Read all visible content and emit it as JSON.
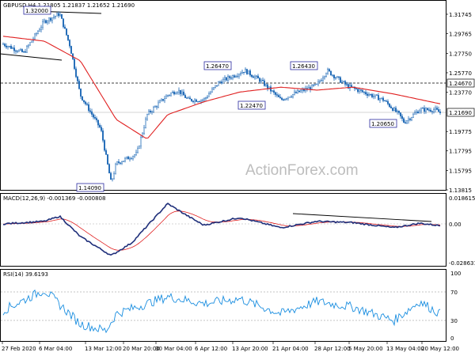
{
  "header": {
    "main": "GBPUSD,H4  1.21805 1.21837 1.21652 1.21690",
    "macd": "MACD(12,26,9) -0.001369 -0.000808",
    "rsi": "RSI(14) 39.6193"
  },
  "watermark": "ActionForex.com",
  "colors": {
    "candles": "#1a66b5",
    "ma": "#e02020",
    "macd_line": "#1f2f7a",
    "macd_signal": "#e02020",
    "rsi_line": "#1a8ee0",
    "grid": "#d8d8d8",
    "label_border": "#2a2aa0"
  },
  "main_axis": {
    "ticks": [
      "1.31745",
      "1.29765",
      "1.27750",
      "1.25770",
      "1.23770",
      "1.21690",
      "1.19775",
      "1.17795",
      "1.15795",
      "1.13815"
    ],
    "resistance_label": "1.24670",
    "current_label": "1.21690"
  },
  "macd_axis": {
    "top": "0.018615",
    "zero": "0.00",
    "bottom": "-0.028631"
  },
  "rsi_axis": {
    "top": "100",
    "upper": "70",
    "lower": "30",
    "bottom": "0"
  },
  "x_axis": [
    "27 Feb 2020",
    "6 Mar 04:00",
    "13 Mar 12:00",
    "20 Mar 20:00",
    "30 Mar 04:00",
    "6 Apr 12:00",
    "13 Apr 20:00",
    "21 Apr 04:00",
    "28 Apr 12:00",
    "5 May 20:00",
    "13 May 04:00",
    "20 May 12:00"
  ],
  "annotations": {
    "high_mar": "1.32000",
    "low_mar": "1.14090",
    "high_apr14": "1.26470",
    "low_apr": "1.22470",
    "high_apr30": "1.26430",
    "low_may": "1.20650"
  },
  "chart_data": {
    "type": "line",
    "price": {
      "series": [
        {
          "t": "27 Feb 2020",
          "close": 1.287
        },
        {
          "t": "2 Mar 2020",
          "close": 1.278
        },
        {
          "t": "6 Mar 2020",
          "close": 1.31
        },
        {
          "t": "9 Mar 2020",
          "close": 1.318
        },
        {
          "t": "11 Mar 2020",
          "close": 1.285
        },
        {
          "t": "13 Mar 2020",
          "close": 1.235
        },
        {
          "t": "17 Mar 2020",
          "close": 1.2
        },
        {
          "t": "19 Mar 2020",
          "close": 1.145
        },
        {
          "t": "20 Mar 2020",
          "close": 1.165
        },
        {
          "t": "24 Mar 2020",
          "close": 1.175
        },
        {
          "t": "26 Mar 2020",
          "close": 1.215
        },
        {
          "t": "30 Mar 2020",
          "close": 1.235
        },
        {
          "t": "1 Apr 2020",
          "close": 1.24
        },
        {
          "t": "3 Apr 2020",
          "close": 1.23
        },
        {
          "t": "6 Apr 2020",
          "close": 1.23
        },
        {
          "t": "9 Apr 2020",
          "close": 1.248
        },
        {
          "t": "14 Apr 2020",
          "close": 1.26
        },
        {
          "t": "17 Apr 2020",
          "close": 1.25
        },
        {
          "t": "21 Apr 2020",
          "close": 1.23
        },
        {
          "t": "23 Apr 2020",
          "close": 1.235
        },
        {
          "t": "28 Apr 2020",
          "close": 1.245
        },
        {
          "t": "30 Apr 2020",
          "close": 1.26
        },
        {
          "t": "4 May 2020",
          "close": 1.244
        },
        {
          "t": "7 May 2020",
          "close": 1.238
        },
        {
          "t": "11 May 2020",
          "close": 1.23
        },
        {
          "t": "14 May 2020",
          "close": 1.215
        },
        {
          "t": "15 May 2020",
          "close": 1.207
        },
        {
          "t": "18 May 2020",
          "close": 1.22
        },
        {
          "t": "21 May 2020",
          "close": 1.22
        },
        {
          "t": "22 May 2020",
          "close": 1.2169
        }
      ],
      "ma": [
        {
          "t": "27 Feb 2020",
          "v": 1.295
        },
        {
          "t": "6 Mar 2020",
          "v": 1.29
        },
        {
          "t": "13 Mar 2020",
          "v": 1.27
        },
        {
          "t": "20 Mar 2020",
          "v": 1.21
        },
        {
          "t": "26 Mar 2020",
          "v": 1.19
        },
        {
          "t": "30 Mar 2020",
          "v": 1.215
        },
        {
          "t": "6 Apr 2020",
          "v": 1.228
        },
        {
          "t": "13 Apr 2020",
          "v": 1.238
        },
        {
          "t": "21 Apr 2020",
          "v": 1.243
        },
        {
          "t": "28 Apr 2020",
          "v": 1.24
        },
        {
          "t": "5 May 2020",
          "v": 1.243
        },
        {
          "t": "13 May 2020",
          "v": 1.236
        },
        {
          "t": "22 May 2020",
          "v": 1.226
        }
      ]
    },
    "macd": [
      {
        "t": "27 Feb 2020",
        "v": 0.0
      },
      {
        "t": "6 Mar 2020",
        "v": 0.002
      },
      {
        "t": "9 Mar 2020",
        "v": 0.006
      },
      {
        "t": "13 Mar 2020",
        "v": -0.01
      },
      {
        "t": "19 Mar 2020",
        "v": -0.025
      },
      {
        "t": "23 Mar 2020",
        "v": -0.015
      },
      {
        "t": "30 Mar 2020",
        "v": 0.016
      },
      {
        "t": "3 Apr 2020",
        "v": 0.006
      },
      {
        "t": "6 Apr 2020",
        "v": -0.001
      },
      {
        "t": "13 Apr 2020",
        "v": 0.005
      },
      {
        "t": "21 Apr 2020",
        "v": -0.003
      },
      {
        "t": "28 Apr 2020",
        "v": 0.002
      },
      {
        "t": "5 May 2020",
        "v": 0.001
      },
      {
        "t": "13 May 2020",
        "v": -0.003
      },
      {
        "t": "18 May 2020",
        "v": 0.0005
      },
      {
        "t": "22 May 2020",
        "v": -0.0014
      }
    ],
    "rsi": [
      {
        "t": "27 Feb 2020",
        "v": 45
      },
      {
        "t": "6 Mar 2020",
        "v": 75
      },
      {
        "t": "13 Mar 2020",
        "v": 25
      },
      {
        "t": "18 Mar 2020",
        "v": 15
      },
      {
        "t": "20 Mar 2020",
        "v": 40
      },
      {
        "t": "30 Mar 2020",
        "v": 65
      },
      {
        "t": "6 Apr 2020",
        "v": 55
      },
      {
        "t": "13 Apr 2020",
        "v": 62
      },
      {
        "t": "21 Apr 2020",
        "v": 40
      },
      {
        "t": "28 Apr 2020",
        "v": 58
      },
      {
        "t": "5 May 2020",
        "v": 50
      },
      {
        "t": "13 May 2020",
        "v": 30
      },
      {
        "t": "18 May 2020",
        "v": 58
      },
      {
        "t": "22 May 2020",
        "v": 40
      }
    ]
  }
}
